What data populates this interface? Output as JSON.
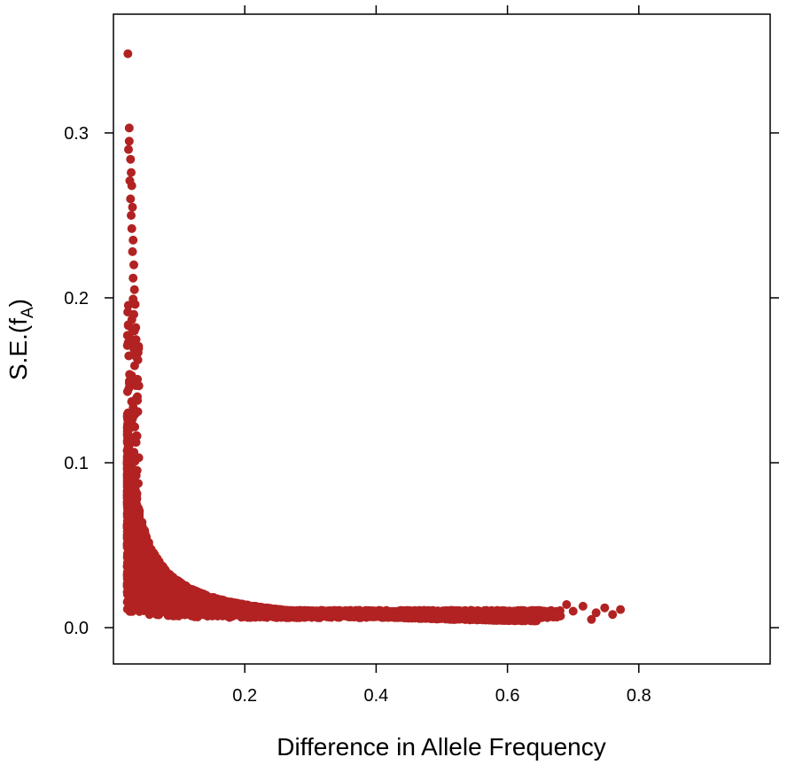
{
  "chart_data": {
    "type": "scatter",
    "xlabel": "Difference in Allele Frequency",
    "ylabel_main": "S.E.(f",
    "ylabel_sub": "A",
    "ylabel_close": ")",
    "xlim": [
      0.0,
      1.0
    ],
    "ylim": [
      -0.022,
      0.372
    ],
    "x_ticks": [
      0.2,
      0.4,
      0.6,
      0.8
    ],
    "x_tick_labels": [
      "0.2",
      "0.4",
      "0.6",
      "0.8"
    ],
    "y_ticks": [
      0.0,
      0.1,
      0.2,
      0.3
    ],
    "y_tick_labels": [
      "0.0",
      "0.1",
      "0.2",
      "0.3"
    ],
    "grid": false,
    "marker_color": "#B22222",
    "point_cloud": "dense band following se ≈ 0.0028 / diff, clipped by a lower edge near 0.006 and extending to diff ≈ 0.78",
    "points": [
      {
        "x": 0.022,
        "y": 0.348
      },
      {
        "x": 0.024,
        "y": 0.303
      },
      {
        "x": 0.024,
        "y": 0.295
      },
      {
        "x": 0.023,
        "y": 0.29
      },
      {
        "x": 0.026,
        "y": 0.284
      },
      {
        "x": 0.027,
        "y": 0.276
      },
      {
        "x": 0.025,
        "y": 0.271
      },
      {
        "x": 0.028,
        "y": 0.268
      },
      {
        "x": 0.026,
        "y": 0.26
      },
      {
        "x": 0.029,
        "y": 0.255
      },
      {
        "x": 0.027,
        "y": 0.25
      },
      {
        "x": 0.028,
        "y": 0.242
      },
      {
        "x": 0.03,
        "y": 0.235
      },
      {
        "x": 0.029,
        "y": 0.228
      },
      {
        "x": 0.031,
        "y": 0.22
      },
      {
        "x": 0.03,
        "y": 0.212
      },
      {
        "x": 0.032,
        "y": 0.205
      },
      {
        "x": 0.033,
        "y": 0.196
      },
      {
        "x": 0.031,
        "y": 0.19
      },
      {
        "x": 0.034,
        "y": 0.182
      },
      {
        "x": 0.772,
        "y": 0.011
      },
      {
        "x": 0.76,
        "y": 0.008
      },
      {
        "x": 0.748,
        "y": 0.012
      },
      {
        "x": 0.735,
        "y": 0.009
      },
      {
        "x": 0.728,
        "y": 0.005
      },
      {
        "x": 0.715,
        "y": 0.013
      },
      {
        "x": 0.7,
        "y": 0.01
      },
      {
        "x": 0.69,
        "y": 0.014
      }
    ]
  }
}
